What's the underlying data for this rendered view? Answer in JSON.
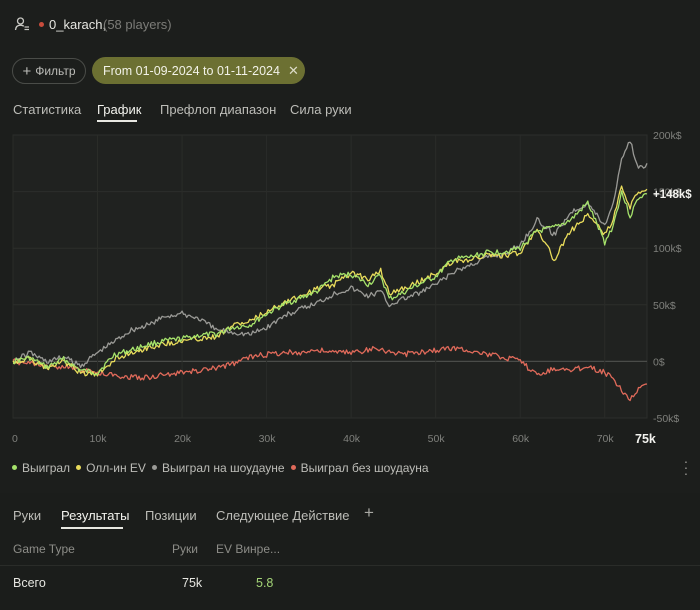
{
  "header": {
    "player_name": "0_karach,",
    "player_count": "(58 players)"
  },
  "filters": {
    "filter_label": "Фильтр",
    "date_range": "From 01-09-2024 to 01-11-2024"
  },
  "tabs": [
    {
      "label": "Статистика",
      "active": false
    },
    {
      "label": "График",
      "active": true
    },
    {
      "label": "Префлоп диапазон",
      "active": false
    },
    {
      "label": "Сила руки",
      "active": false
    }
  ],
  "chart_data": {
    "type": "line",
    "x_ticks": [
      "0",
      "10k",
      "20k",
      "30k",
      "40k",
      "50k",
      "60k",
      "70k"
    ],
    "x_end_label": "75k",
    "y_ticks": [
      "200k$",
      "150k$",
      "100k$",
      "50k$",
      "0$",
      "-50k$"
    ],
    "xlim": [
      0,
      75000
    ],
    "ylim": [
      -50000,
      200000
    ],
    "end_value_label": "+148k$",
    "colors": {
      "won": "#a6e36b",
      "allin_ev": "#e9dc5b",
      "showdown": "#9a9a96",
      "non_showdown": "#e06a5a"
    },
    "series": [
      {
        "name": "Выиграл",
        "key": "won",
        "x": [
          0,
          2000,
          4000,
          6000,
          8000,
          10000,
          12000,
          14000,
          16000,
          18000,
          20000,
          22000,
          24000,
          26000,
          28000,
          30000,
          32000,
          34000,
          36000,
          38000,
          40000,
          42000,
          43500,
          44500,
          46000,
          48000,
          50000,
          52000,
          54000,
          56000,
          58000,
          60000,
          62000,
          64000,
          66000,
          68000,
          70000,
          71000,
          72000,
          73000,
          74000,
          75000
        ],
        "y": [
          0,
          3000,
          -5000,
          2000,
          -8000,
          -10000,
          6000,
          10000,
          15000,
          18000,
          20000,
          23000,
          24000,
          30000,
          32000,
          42000,
          50000,
          56000,
          62000,
          75000,
          77000,
          68000,
          76000,
          55000,
          60000,
          68000,
          75000,
          90000,
          92000,
          96000,
          97000,
          100000,
          115000,
          118000,
          125000,
          140000,
          105000,
          120000,
          150000,
          128000,
          145000,
          148000
        ]
      },
      {
        "name": "Олл-ин EV",
        "key": "allin_ev",
        "x": [
          0,
          2000,
          4000,
          6000,
          8000,
          10000,
          12000,
          14000,
          16000,
          18000,
          20000,
          22000,
          24000,
          26000,
          28000,
          30000,
          32000,
          34000,
          36000,
          38000,
          40000,
          42000,
          43500,
          44500,
          46000,
          48000,
          50000,
          52000,
          54000,
          56000,
          58000,
          60000,
          62000,
          64000,
          66000,
          68000,
          70000,
          71000,
          72000,
          73000,
          74000,
          75000
        ],
        "y": [
          0,
          2000,
          -6000,
          0,
          -10000,
          -12000,
          2000,
          8000,
          12000,
          16000,
          18000,
          20000,
          22000,
          32000,
          35000,
          44000,
          52000,
          58000,
          64000,
          68000,
          78000,
          73000,
          80000,
          60000,
          64000,
          70000,
          78000,
          88000,
          90000,
          94000,
          93000,
          96000,
          118000,
          90000,
          115000,
          130000,
          112000,
          125000,
          155000,
          136000,
          150000,
          152000
        ]
      },
      {
        "name": "Выиграл на шоудауне",
        "key": "showdown",
        "x": [
          0,
          2000,
          4000,
          6000,
          8000,
          10000,
          12000,
          14000,
          16000,
          18000,
          20000,
          22000,
          24000,
          26000,
          28000,
          30000,
          32000,
          34000,
          36000,
          38000,
          40000,
          42000,
          43500,
          44500,
          46000,
          48000,
          50000,
          52000,
          54000,
          56000,
          58000,
          60000,
          62000,
          64000,
          66000,
          68000,
          70000,
          71000,
          72000,
          73000,
          74000,
          75000
        ],
        "y": [
          0,
          8000,
          0,
          4000,
          -4000,
          8000,
          18000,
          28000,
          32000,
          40000,
          42000,
          38000,
          28000,
          26000,
          24000,
          30000,
          40000,
          46000,
          52000,
          60000,
          65000,
          58000,
          62000,
          50000,
          55000,
          60000,
          68000,
          78000,
          85000,
          92000,
          95000,
          103000,
          125000,
          112000,
          132000,
          140000,
          120000,
          140000,
          180000,
          195000,
          170000,
          175000
        ]
      },
      {
        "name": "Выиграл без шоудауна",
        "key": "non_showdown",
        "x": [
          0,
          2000,
          4000,
          6000,
          8000,
          10000,
          12000,
          14000,
          16000,
          18000,
          20000,
          22000,
          24000,
          26000,
          28000,
          30000,
          32000,
          34000,
          36000,
          38000,
          40000,
          42000,
          43500,
          44500,
          46000,
          48000,
          50000,
          52000,
          54000,
          56000,
          58000,
          60000,
          62000,
          64000,
          66000,
          68000,
          70000,
          71000,
          72000,
          73000,
          74000,
          75000
        ],
        "y": [
          0,
          -2000,
          -5000,
          -4000,
          -8000,
          -10000,
          -12000,
          -14000,
          -14000,
          -12000,
          -10000,
          -8000,
          -6000,
          -2000,
          4000,
          6000,
          8000,
          8000,
          10000,
          8000,
          8000,
          10000,
          12000,
          8000,
          6000,
          8000,
          10000,
          12000,
          10000,
          6000,
          4000,
          0,
          -12000,
          -6000,
          -8000,
          -4000,
          -10000,
          -15000,
          -25000,
          -33000,
          -25000,
          -20000
        ]
      }
    ]
  },
  "legend": [
    {
      "label": "Выиграл",
      "key": "won"
    },
    {
      "label": "Олл-ин EV",
      "key": "allin_ev"
    },
    {
      "label": "Выиграл на шоудауне",
      "key": "showdown"
    },
    {
      "label": "Выиграл без шоудауна",
      "key": "non_showdown"
    }
  ],
  "bottom_tabs": [
    {
      "label": "Руки",
      "active": false
    },
    {
      "label": "Результаты",
      "active": true
    },
    {
      "label": "Позиции",
      "active": false
    },
    {
      "label": "Следующее Действие",
      "active": false
    }
  ],
  "table": {
    "headers": {
      "game_type": "Game Type",
      "hands": "Руки",
      "ev": "EV Винре..."
    },
    "rows": [
      {
        "game_type": "Всего",
        "hands": "75k",
        "ev": "5.8"
      }
    ]
  }
}
